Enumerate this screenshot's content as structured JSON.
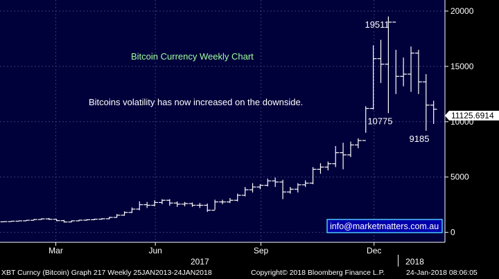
{
  "chart_data": {
    "type": "bar",
    "subtype": "weekly-ohlc",
    "title": "Bitcoin Currency Weekly Chart",
    "annotation_text": "Bitcoins volatility has now increased on the downside.",
    "website": "info@marketmatters.com.au",
    "last_price_label": "11125.6914",
    "point_labels": [
      {
        "text": "19511",
        "x": 50.0,
        "y": 19511
      },
      {
        "text": "10775",
        "x": 50.4,
        "y": 10775
      },
      {
        "text": "9185",
        "x": 55.6,
        "y": 9185
      }
    ],
    "x_ticks": [
      {
        "label": "Mar",
        "x": 7.4
      },
      {
        "label": "Jun",
        "x": 20.6
      },
      {
        "label": "Sep",
        "x": 34.6
      },
      {
        "label": "Dec",
        "x": 49.6
      }
    ],
    "year_labels": [
      {
        "label": "2017",
        "x": 26.5
      },
      {
        "label": "2018",
        "x": 55.0
      }
    ],
    "year_divider_x": 52.8,
    "y_ticks": [
      0,
      5000,
      10000,
      15000,
      20000
    ],
    "ylim": [
      -900,
      21000
    ],
    "xlim": [
      0,
      59
    ],
    "grid": true,
    "bars": [
      {
        "x": 0,
        "h": 1000,
        "l": 950,
        "c": 970
      },
      {
        "x": 1,
        "h": 1020,
        "l": 960,
        "c": 1010
      },
      {
        "x": 2,
        "h": 1060,
        "l": 990,
        "c": 1040
      },
      {
        "x": 3,
        "h": 1120,
        "l": 1030,
        "c": 1090
      },
      {
        "x": 4,
        "h": 1200,
        "l": 1080,
        "c": 1160
      },
      {
        "x": 5,
        "h": 1270,
        "l": 1140,
        "c": 1220
      },
      {
        "x": 6,
        "h": 1300,
        "l": 1130,
        "c": 1180
      },
      {
        "x": 7,
        "h": 1200,
        "l": 1020,
        "c": 1060
      },
      {
        "x": 8,
        "h": 1120,
        "l": 890,
        "c": 940
      },
      {
        "x": 9,
        "h": 1080,
        "l": 930,
        "c": 1040
      },
      {
        "x": 10,
        "h": 1140,
        "l": 1010,
        "c": 1100
      },
      {
        "x": 11,
        "h": 1180,
        "l": 1060,
        "c": 1140
      },
      {
        "x": 12,
        "h": 1230,
        "l": 1100,
        "c": 1190
      },
      {
        "x": 13,
        "h": 1280,
        "l": 1150,
        "c": 1230
      },
      {
        "x": 14,
        "h": 1400,
        "l": 1190,
        "c": 1350
      },
      {
        "x": 15,
        "h": 1650,
        "l": 1320,
        "c": 1550
      },
      {
        "x": 16,
        "h": 1900,
        "l": 1500,
        "c": 1800
      },
      {
        "x": 17,
        "h": 2250,
        "l": 1750,
        "c": 2100
      },
      {
        "x": 18,
        "h": 2800,
        "l": 2000,
        "c": 2500
      },
      {
        "x": 19,
        "h": 2750,
        "l": 2200,
        "c": 2450
      },
      {
        "x": 20,
        "h": 2900,
        "l": 2350,
        "c": 2700
      },
      {
        "x": 21,
        "h": 3000,
        "l": 2550,
        "c": 2900
      },
      {
        "x": 22,
        "h": 3000,
        "l": 2400,
        "c": 2650
      },
      {
        "x": 23,
        "h": 2800,
        "l": 2300,
        "c": 2550
      },
      {
        "x": 24,
        "h": 2750,
        "l": 2350,
        "c": 2600
      },
      {
        "x": 25,
        "h": 2700,
        "l": 2300,
        "c": 2450
      },
      {
        "x": 26,
        "h": 2650,
        "l": 2200,
        "c": 2450
      },
      {
        "x": 27,
        "h": 2600,
        "l": 1850,
        "c": 2000
      },
      {
        "x": 28,
        "h": 2950,
        "l": 2050,
        "c": 2750
      },
      {
        "x": 29,
        "h": 2950,
        "l": 2550,
        "c": 2750
      },
      {
        "x": 30,
        "h": 3100,
        "l": 2650,
        "c": 2900
      },
      {
        "x": 31,
        "h": 3500,
        "l": 2800,
        "c": 3350
      },
      {
        "x": 32,
        "h": 4100,
        "l": 3250,
        "c": 3850
      },
      {
        "x": 33,
        "h": 4450,
        "l": 3600,
        "c": 4100
      },
      {
        "x": 34,
        "h": 4350,
        "l": 3900,
        "c": 4250
      },
      {
        "x": 35,
        "h": 4850,
        "l": 4150,
        "c": 4650
      },
      {
        "x": 36,
        "h": 4950,
        "l": 4100,
        "c": 4550
      },
      {
        "x": 37,
        "h": 4750,
        "l": 3000,
        "c": 3650
      },
      {
        "x": 38,
        "h": 4100,
        "l": 3500,
        "c": 3900
      },
      {
        "x": 39,
        "h": 4450,
        "l": 3600,
        "c": 4300
      },
      {
        "x": 40,
        "h": 4700,
        "l": 4100,
        "c": 4450
      },
      {
        "x": 41,
        "h": 5900,
        "l": 4350,
        "c": 5700
      },
      {
        "x": 42,
        "h": 6250,
        "l": 5300,
        "c": 5900
      },
      {
        "x": 43,
        "h": 6400,
        "l": 5600,
        "c": 6200
      },
      {
        "x": 44,
        "h": 7800,
        "l": 5900,
        "c": 7200
      },
      {
        "x": 45,
        "h": 8100,
        "l": 5700,
        "c": 7000
      },
      {
        "x": 46,
        "h": 8200,
        "l": 6800,
        "c": 7900
      },
      {
        "x": 47,
        "h": 8500,
        "l": 7600,
        "c": 8300
      },
      {
        "x": 48,
        "h": 11400,
        "l": 9000,
        "c": 11200
      },
      {
        "x": 49,
        "h": 16900,
        "l": 11100,
        "c": 15700
      },
      {
        "x": 50,
        "h": 17400,
        "l": 13500,
        "c": 15200
      },
      {
        "x": 51,
        "h": 19511,
        "l": 10775,
        "c": 19000
      },
      {
        "x": 52,
        "h": 16500,
        "l": 12500,
        "c": 14100
      },
      {
        "x": 53,
        "h": 15800,
        "l": 13200,
        "c": 14300
      },
      {
        "x": 54,
        "h": 16800,
        "l": 12700,
        "c": 16200
      },
      {
        "x": 55,
        "h": 16500,
        "l": 12500,
        "c": 13600
      },
      {
        "x": 56,
        "h": 14300,
        "l": 9185,
        "c": 11500
      },
      {
        "x": 57,
        "h": 11900,
        "l": 9800,
        "c": 11125
      }
    ]
  },
  "footer": {
    "left": "XBT Curncy (Bitcoin) Graph 217  Weekly 25JAN2013-24JAN2018",
    "copyright": "Copyright© 2018 Bloomberg Finance L.P.",
    "timestamp": "24-Jan-2018 08:06:05"
  },
  "colors": {
    "plot_bg": "#00003a",
    "axis_bg": "#000000",
    "grid": "#3a3a7a",
    "bar": "#ffffff",
    "title": "#a0ffa0",
    "text": "#ffffff",
    "website_box_bg": "#0000aa",
    "website_border": "#4fc8ff"
  }
}
